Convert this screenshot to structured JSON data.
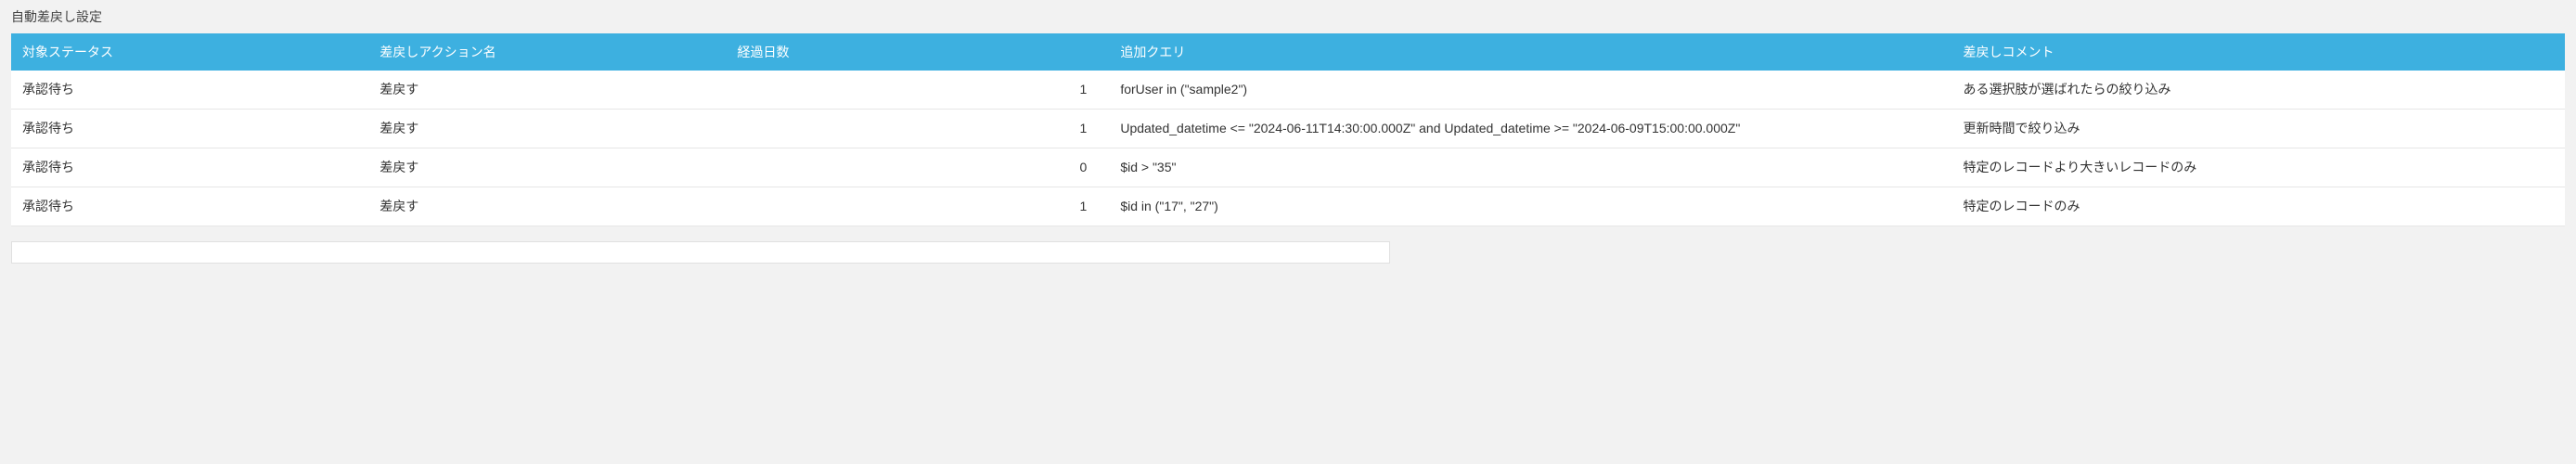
{
  "panel": {
    "title": "自動差戻し設定"
  },
  "table": {
    "header_bg": "#3db0e0",
    "columns": [
      {
        "key": "status",
        "label": "対象ステータス"
      },
      {
        "key": "action",
        "label": "差戻しアクション名"
      },
      {
        "key": "days",
        "label": "経過日数"
      },
      {
        "key": "query",
        "label": "追加クエリ"
      },
      {
        "key": "comment",
        "label": "差戻しコメント"
      }
    ],
    "rows": [
      {
        "status": "承認待ち",
        "action": "差戻す",
        "days": "1",
        "query": "forUser in (\"sample2\")",
        "comment": "ある選択肢が選ばれたらの絞り込み"
      },
      {
        "status": "承認待ち",
        "action": "差戻す",
        "days": "1",
        "query": "Updated_datetime <= \"2024-06-11T14:30:00.000Z\" and Updated_datetime >= \"2024-06-09T15:00:00.000Z\"",
        "comment": "更新時間で絞り込み"
      },
      {
        "status": "承認待ち",
        "action": "差戻す",
        "days": "0",
        "query": "$id > \"35\"",
        "comment": "特定のレコードより大きいレコードのみ"
      },
      {
        "status": "承認待ち",
        "action": "差戻す",
        "days": "1",
        "query": "$id in (\"17\", \"27\")",
        "comment": "特定のレコードのみ"
      }
    ]
  }
}
